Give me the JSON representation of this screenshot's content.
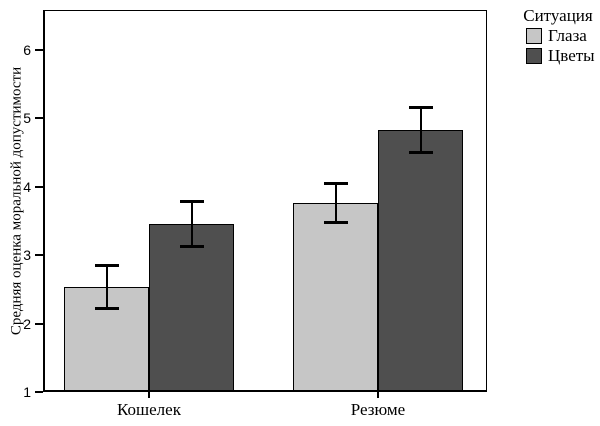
{
  "chart_data": {
    "type": "bar",
    "legend_title": "Ситуация",
    "ylabel": "Средняя оценка моральной допустимости",
    "xlabel": "",
    "categories": [
      "Кошелек",
      "Резюме"
    ],
    "series": [
      {
        "name": "Глаза",
        "color": "#c6c6c6",
        "values": [
          2.53,
          3.76
        ],
        "error_upper": [
          2.86,
          4.06
        ],
        "error_lower": [
          2.22,
          3.47
        ]
      },
      {
        "name": "Цветы",
        "color": "#4f4f4f",
        "values": [
          3.45,
          4.83
        ],
        "error_upper": [
          3.79,
          5.17
        ],
        "error_lower": [
          3.12,
          4.5
        ]
      }
    ],
    "ylim": [
      1,
      6.6
    ],
    "yticks": [
      1,
      2,
      3,
      4,
      5,
      6
    ],
    "grid": false,
    "error_bars": true,
    "legend_position": "top-right-outside",
    "axis_color": "#000000",
    "background": "#ffffff"
  }
}
